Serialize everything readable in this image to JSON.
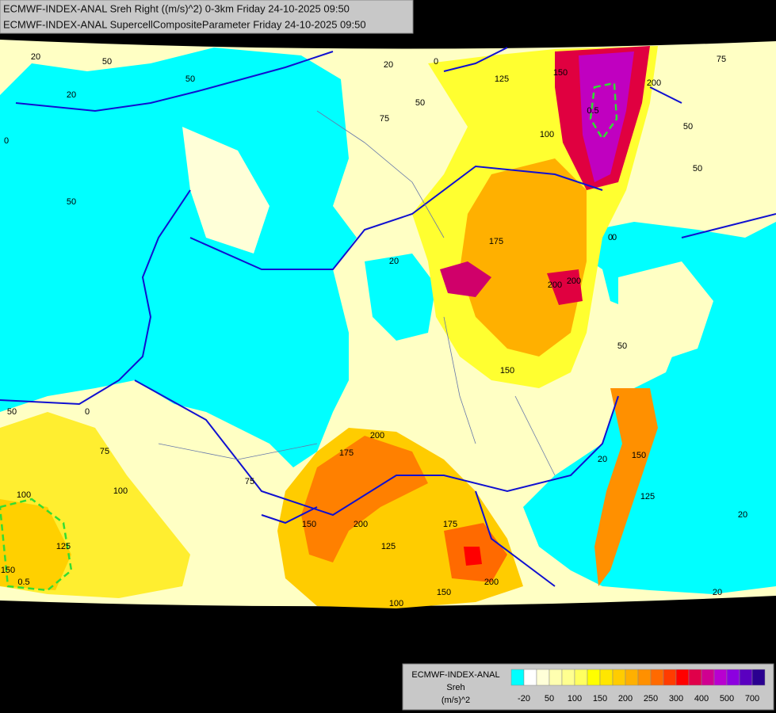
{
  "header": {
    "lines": [
      "ECMWF-INDEX-ANAL Sreh Right ((m/s)^2) 0-3km Friday 24-10-2025 09:50",
      "ECMWF-INDEX-ANAL SupercellCompositeParameter Friday 24-10-2025 09:50"
    ]
  },
  "legend": {
    "title": [
      "ECMWF-INDEX-ANAL",
      "Sreh",
      "(m/s)^2"
    ],
    "labels": [
      -20,
      50,
      100,
      150,
      200,
      250,
      300,
      400,
      500,
      700
    ],
    "colors": [
      "#00ffff",
      "#ffffff",
      "#ffffd8",
      "#ffffb0",
      "#ffff90",
      "#ffff60",
      "#ffff00",
      "#ffe600",
      "#ffcc00",
      "#ffb000",
      "#ff9000",
      "#ff6a00",
      "#ff3c00",
      "#ff0000",
      "#e0004a",
      "#d00090",
      "#b800d0",
      "#8c00e0",
      "#5a00c0",
      "#2a0090"
    ]
  },
  "map": {
    "contour_labels": [
      20,
      50,
      20,
      20,
      0,
      0,
      50,
      50,
      75,
      50,
      100,
      125,
      150,
      0.5,
      200,
      75,
      50,
      50,
      175,
      200,
      200,
      150,
      50,
      0,
      50,
      0,
      75,
      100,
      100,
      125,
      150,
      0.5,
      200,
      175,
      75,
      150,
      200,
      125,
      175,
      150,
      200,
      100,
      20,
      150,
      125,
      20,
      20,
      0,
      20
    ]
  }
}
